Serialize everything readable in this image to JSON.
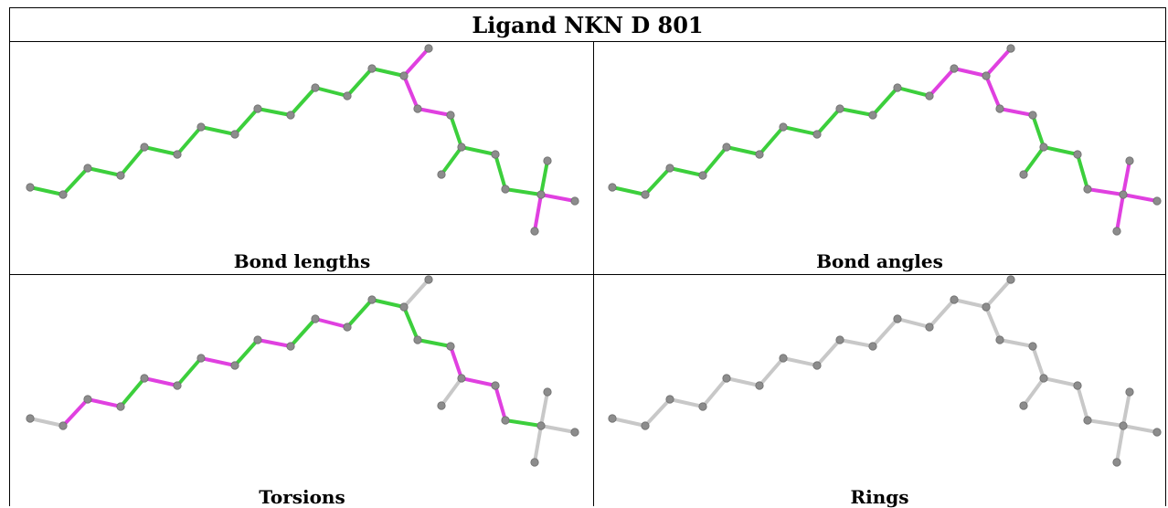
{
  "title": "Ligand NKN D 801",
  "colors": {
    "ok": "#3ccf3c",
    "outlier": "#e040e0",
    "neutral": "#c8c8c8",
    "atom": "#8c8c8c"
  },
  "panels": [
    {
      "caption": "Bond lengths",
      "mode": "lengths"
    },
    {
      "caption": "Bond angles",
      "mode": "angles"
    },
    {
      "caption": "Torsions",
      "mode": "torsions"
    },
    {
      "caption": "Rings",
      "mode": "rings"
    }
  ]
}
